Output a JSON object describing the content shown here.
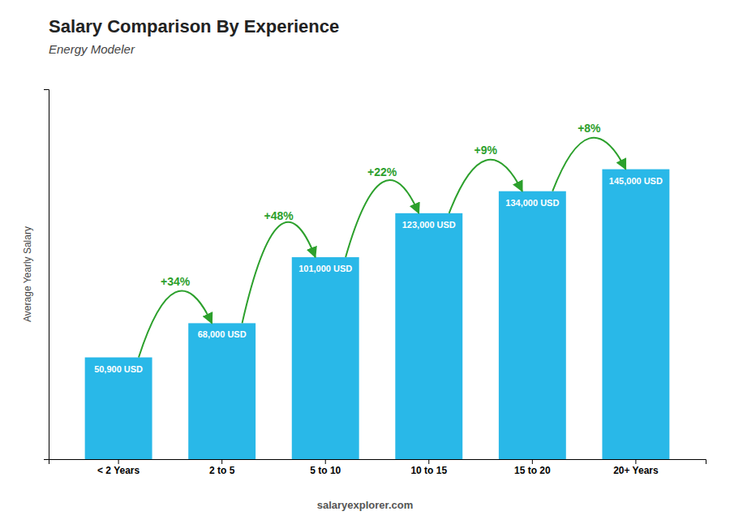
{
  "chart_data": {
    "type": "bar",
    "title": "Salary Comparison By Experience",
    "subtitle": "Energy Modeler",
    "ylabel": "Average Yearly Salary",
    "categories": [
      "< 2 Years",
      "2 to 5",
      "5 to 10",
      "10 to 15",
      "15 to 20",
      "20+ Years"
    ],
    "values": [
      50900,
      68000,
      101000,
      123000,
      134000,
      145000
    ],
    "value_labels": [
      "50,900 USD",
      "68,000 USD",
      "101,000 USD",
      "123,000 USD",
      "134,000 USD",
      "145,000 USD"
    ],
    "data_labels": true,
    "annotations": [
      "+34%",
      "+48%",
      "+22%",
      "+9%",
      "+8%"
    ],
    "footer": "salaryexplorer.com",
    "color": "#29b8e8",
    "ylim": [
      0,
      185000
    ],
    "grid": false,
    "tick_labels": "x"
  }
}
